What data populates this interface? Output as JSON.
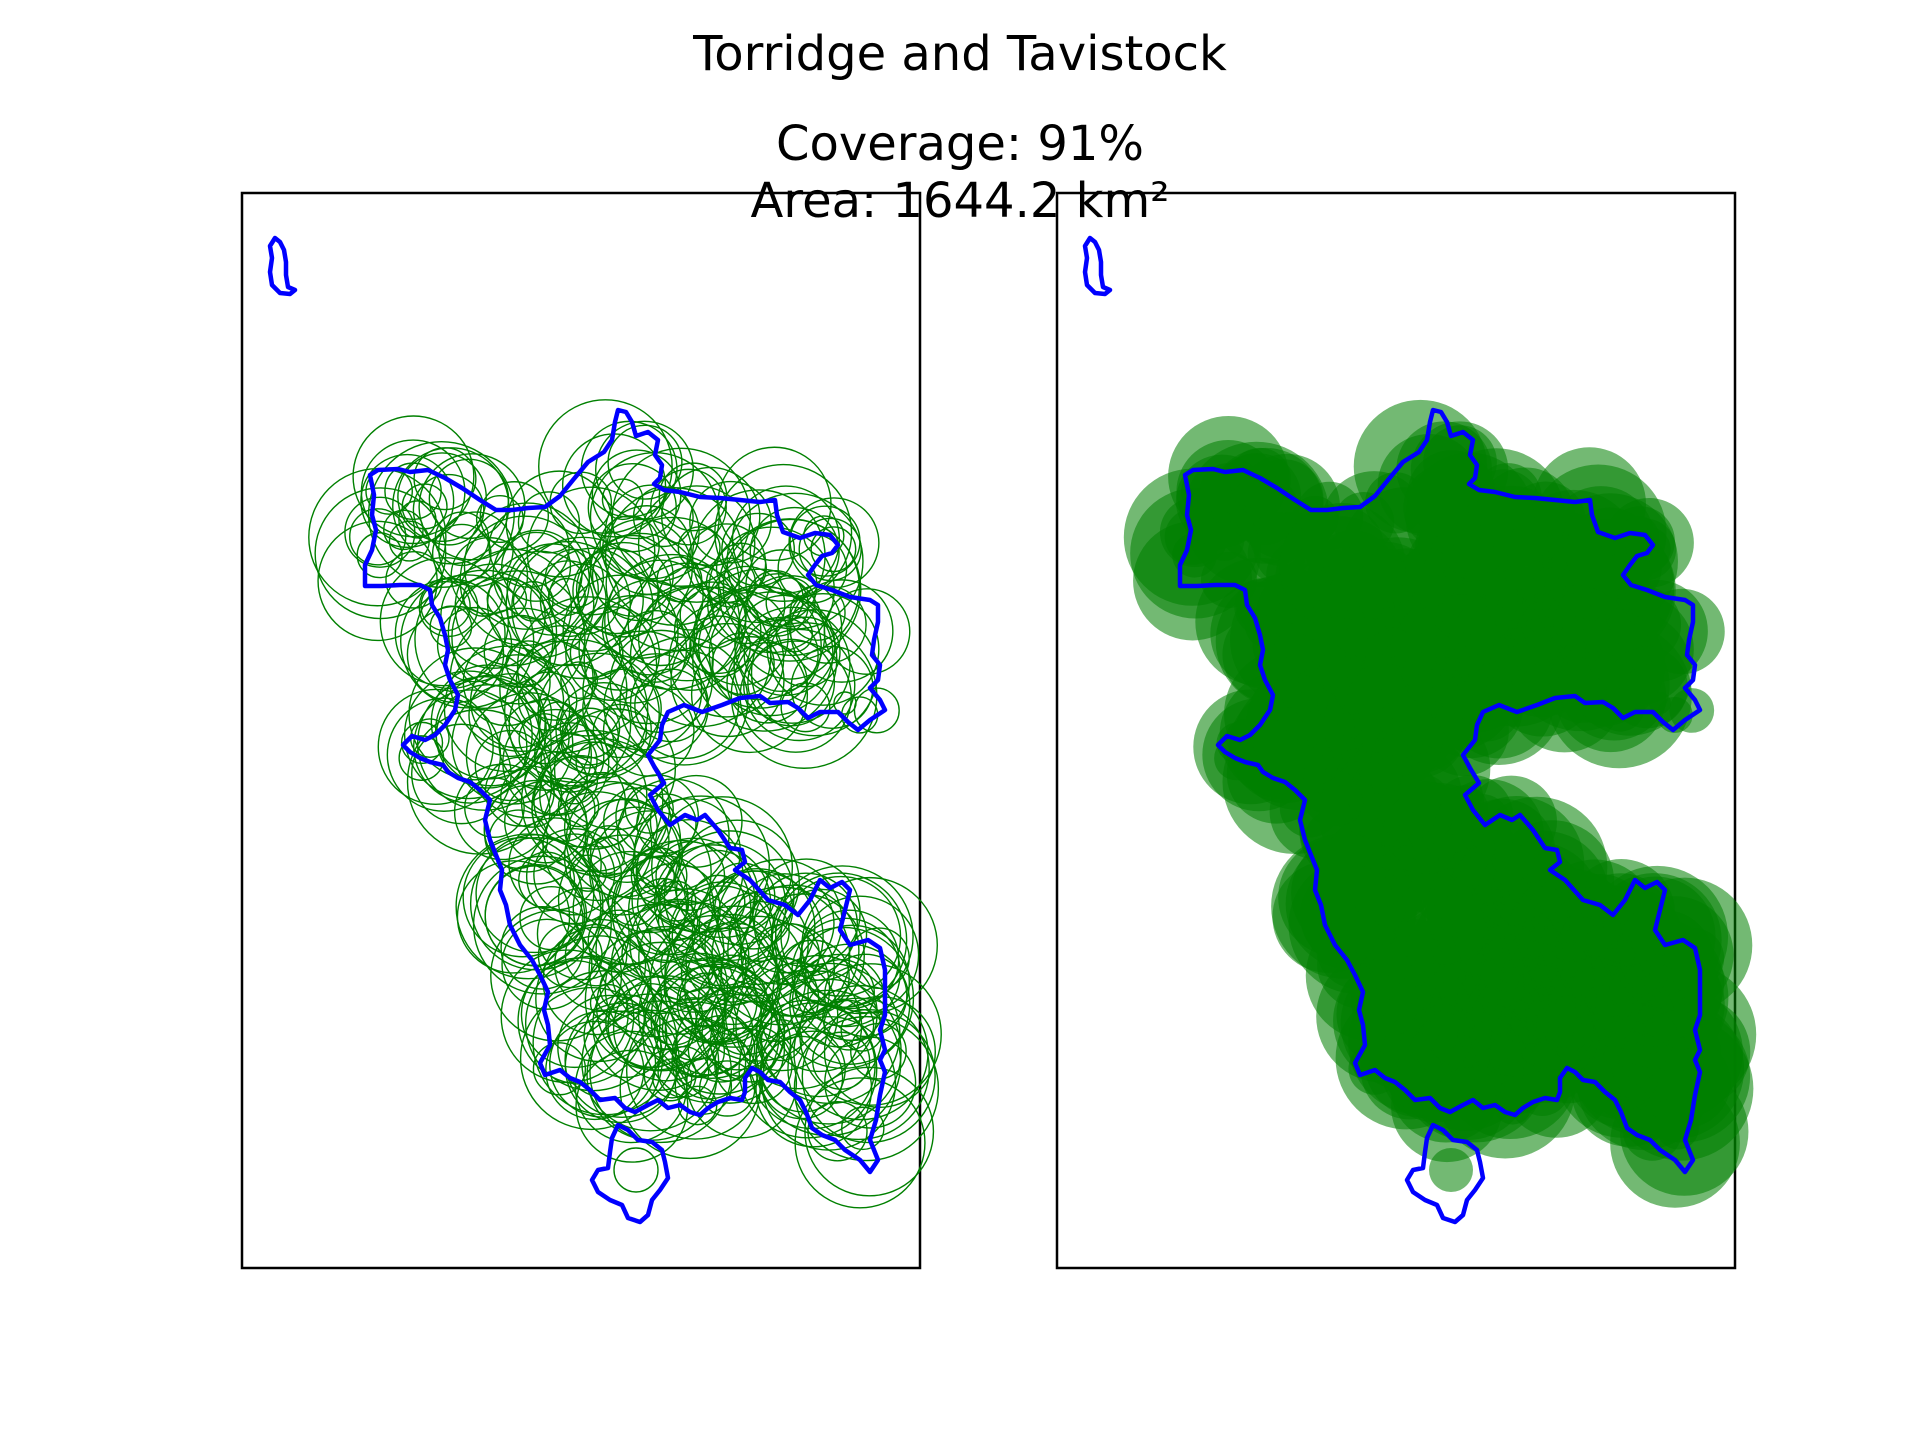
{
  "figure": {
    "title": "Torridge and Tavistock",
    "coverage_line": "Coverage: 91%",
    "area_line": "Area: 1644.2 km²"
  },
  "colors": {
    "boundary": "#0000ff",
    "circles": "#008000",
    "frame": "#000000",
    "background": "#ffffff"
  },
  "map": {
    "name": "Torridge and Tavistock",
    "coverage_percent": 91,
    "area_km2": 1644.2,
    "panels": [
      {
        "id": "left",
        "style": "circle outlines"
      },
      {
        "id": "right",
        "style": "filled translucent circles"
      }
    ]
  }
}
